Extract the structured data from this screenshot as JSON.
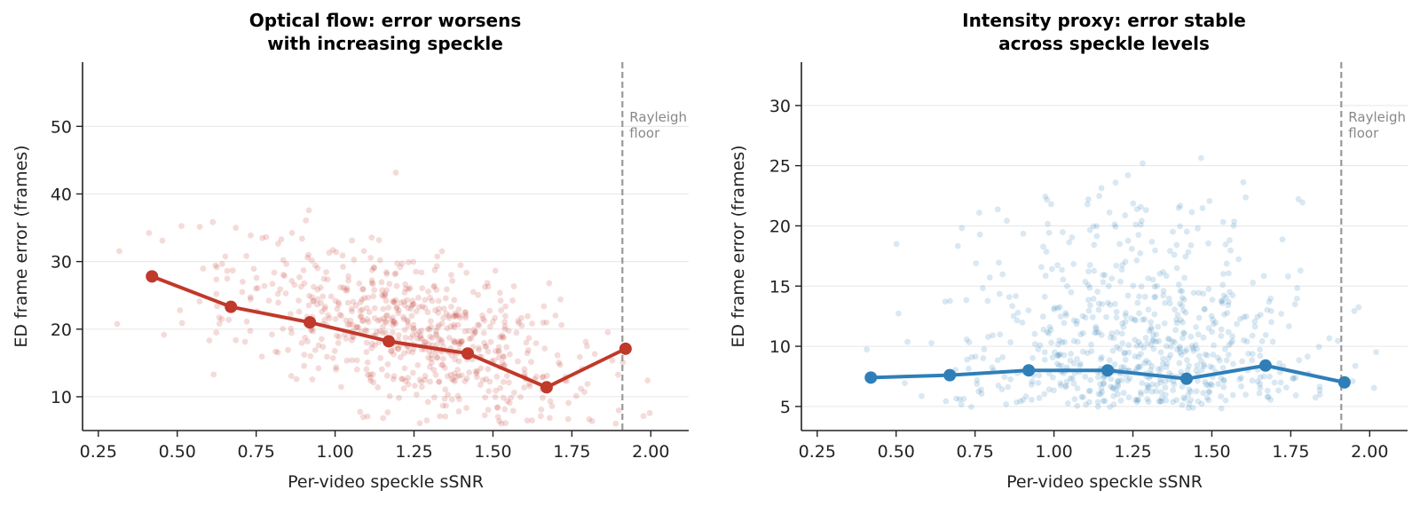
{
  "chart_data": [
    {
      "type": "scatter",
      "title": [
        "Optical flow: error worsens",
        "with increasing speckle"
      ],
      "xlabel": "Per-video speckle sSNR",
      "ylabel": "ED frame error (frames)",
      "xlim": [
        0.2,
        2.12
      ],
      "ylim": [
        5,
        59.5
      ],
      "xticks": [
        0.25,
        0.5,
        0.75,
        1.0,
        1.25,
        1.5,
        1.75,
        2.0
      ],
      "xtick_labels": [
        "0.25",
        "0.50",
        "0.75",
        "1.00",
        "1.25",
        "1.50",
        "1.75",
        "2.00"
      ],
      "yticks": [
        10,
        20,
        30,
        40,
        50
      ],
      "ytick_labels": [
        "10",
        "20",
        "30",
        "40",
        "50"
      ],
      "grid": "horizontal",
      "color": "#c0392b",
      "reference_line": {
        "x": 1.91,
        "label": [
          "Rayleigh",
          "floor"
        ]
      },
      "scatter_trend": {
        "start": 28,
        "slope": -12,
        "x_range": [
          0.3,
          2.05
        ],
        "center_x": 0.9
      },
      "series": [
        {
          "x": [
            0.42,
            0.67,
            0.92,
            1.17,
            1.42,
            1.67,
            1.92
          ],
          "y": [
            27.8,
            23.3,
            21.0,
            18.2,
            16.4,
            11.4,
            17.1
          ]
        }
      ]
    },
    {
      "type": "scatter",
      "title": [
        "Intensity proxy: error stable",
        "across speckle levels"
      ],
      "xlabel": "Per-video speckle sSNR",
      "ylabel": "ED frame error (frames)",
      "xlim": [
        0.2,
        2.12
      ],
      "ylim": [
        3,
        33.6
      ],
      "xticks": [
        0.25,
        0.5,
        0.75,
        1.0,
        1.25,
        1.5,
        1.75,
        2.0
      ],
      "xtick_labels": [
        "0.25",
        "0.50",
        "0.75",
        "1.00",
        "1.25",
        "1.50",
        "1.75",
        "2.00"
      ],
      "yticks": [
        5,
        10,
        15,
        20,
        25,
        30
      ],
      "ytick_labels": [
        "5",
        "10",
        "15",
        "20",
        "25",
        "30"
      ],
      "grid": "horizontal",
      "color": "#2e7fb8",
      "reference_line": {
        "x": 1.91,
        "label": [
          "Rayleigh",
          "floor"
        ]
      },
      "scatter_trend": {
        "start": 8,
        "slope": 0,
        "x_range": [
          0.3,
          2.05
        ],
        "center_x": 0.9
      },
      "series": [
        {
          "x": [
            0.42,
            0.67,
            0.92,
            1.17,
            1.42,
            1.67,
            1.92
          ],
          "y": [
            7.4,
            7.6,
            8.0,
            8.0,
            7.3,
            8.4,
            7.0
          ]
        }
      ]
    }
  ]
}
